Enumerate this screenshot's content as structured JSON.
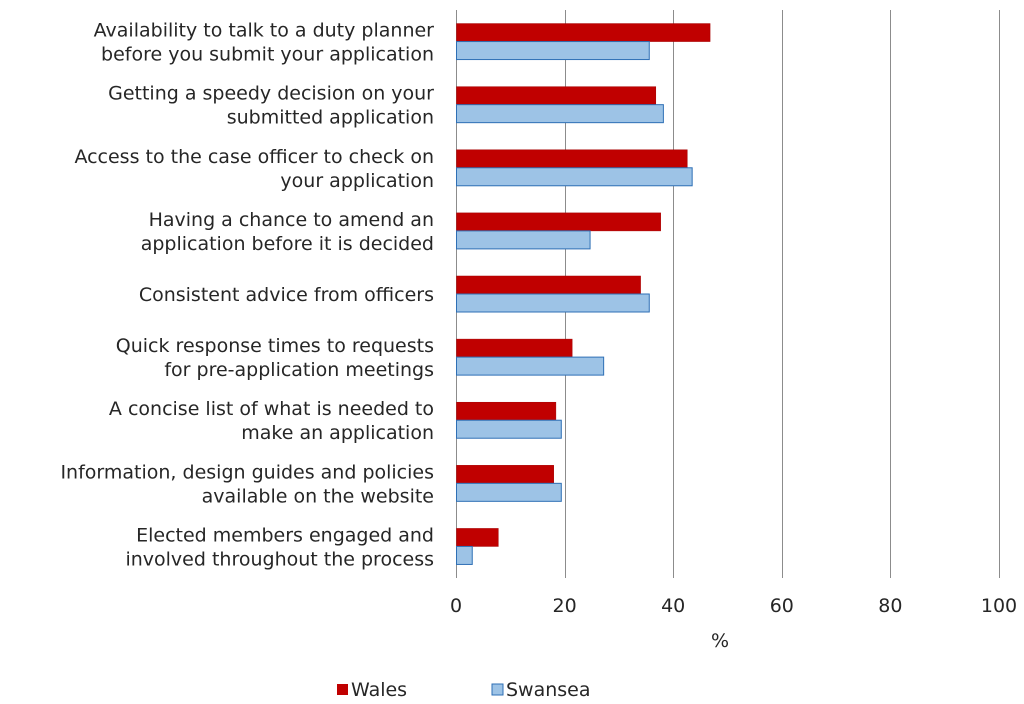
{
  "chart_data": {
    "type": "bar",
    "orientation": "horizontal",
    "categories": [
      [
        "Availability to talk to a duty planner",
        "before you submit your application"
      ],
      [
        "Getting a speedy decision on your",
        "submitted application"
      ],
      [
        "Access to the case officer to check on",
        "your application"
      ],
      [
        "Having a chance to amend an",
        "application before it is decided"
      ],
      [
        "Consistent advice from officers"
      ],
      [
        "Quick response times to requests",
        "for pre-application meetings"
      ],
      [
        "A concise list of what is needed to",
        "make an application"
      ],
      [
        "Information, design guides and policies",
        "available on the website"
      ],
      [
        "Elected members engaged and",
        "involved throughout the process"
      ]
    ],
    "series": [
      {
        "name": "Wales",
        "color": "#c00000",
        "values": [
          46.7,
          36.7,
          42.5,
          37.6,
          33.9,
          21.3,
          18.3,
          17.9,
          7.7
        ]
      },
      {
        "name": "Swansea",
        "color": "#9dc3e6",
        "values": [
          35.5,
          38.1,
          43.4,
          24.6,
          35.5,
          27.1,
          19.3,
          19.3,
          2.9
        ]
      }
    ],
    "xlabel": "%",
    "xlim": [
      0,
      100
    ],
    "xticks": [
      0,
      20,
      40,
      60,
      80,
      100
    ],
    "grid": true,
    "legend": "bottom"
  }
}
